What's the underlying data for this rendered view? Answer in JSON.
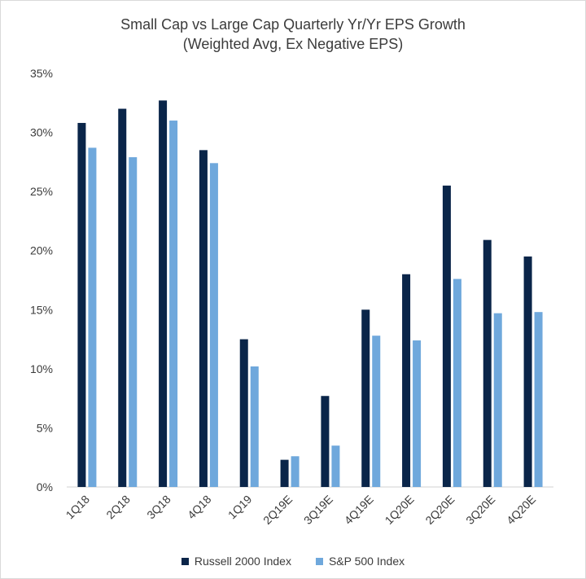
{
  "chart_data": {
    "type": "bar",
    "title": "Small Cap vs Large Cap Quarterly Yr/Yr EPS Growth",
    "subtitle": "(Weighted Avg, Ex Negative EPS)",
    "categories": [
      "1Q18",
      "2Q18",
      "3Q18",
      "4Q18",
      "1Q19",
      "2Q19E",
      "3Q19E",
      "4Q19E",
      "1Q20E",
      "2Q20E",
      "3Q20E",
      "4Q20E"
    ],
    "series": [
      {
        "name": "Russell 2000 Index",
        "color": "#0a2549",
        "values": [
          30.8,
          32.0,
          32.7,
          28.5,
          12.5,
          2.3,
          7.7,
          15.0,
          18.0,
          25.5,
          20.9,
          19.5
        ]
      },
      {
        "name": "S&P 500 Index",
        "color": "#6fa8dc",
        "values": [
          28.7,
          27.9,
          31.0,
          27.4,
          10.2,
          2.6,
          3.5,
          12.8,
          12.4,
          17.6,
          14.7,
          14.8
        ]
      }
    ],
    "yticks": [
      "0%",
      "5%",
      "10%",
      "15%",
      "20%",
      "25%",
      "30%",
      "35%"
    ],
    "ylim": [
      0,
      35
    ],
    "grid": false,
    "legend_position": "bottom"
  }
}
